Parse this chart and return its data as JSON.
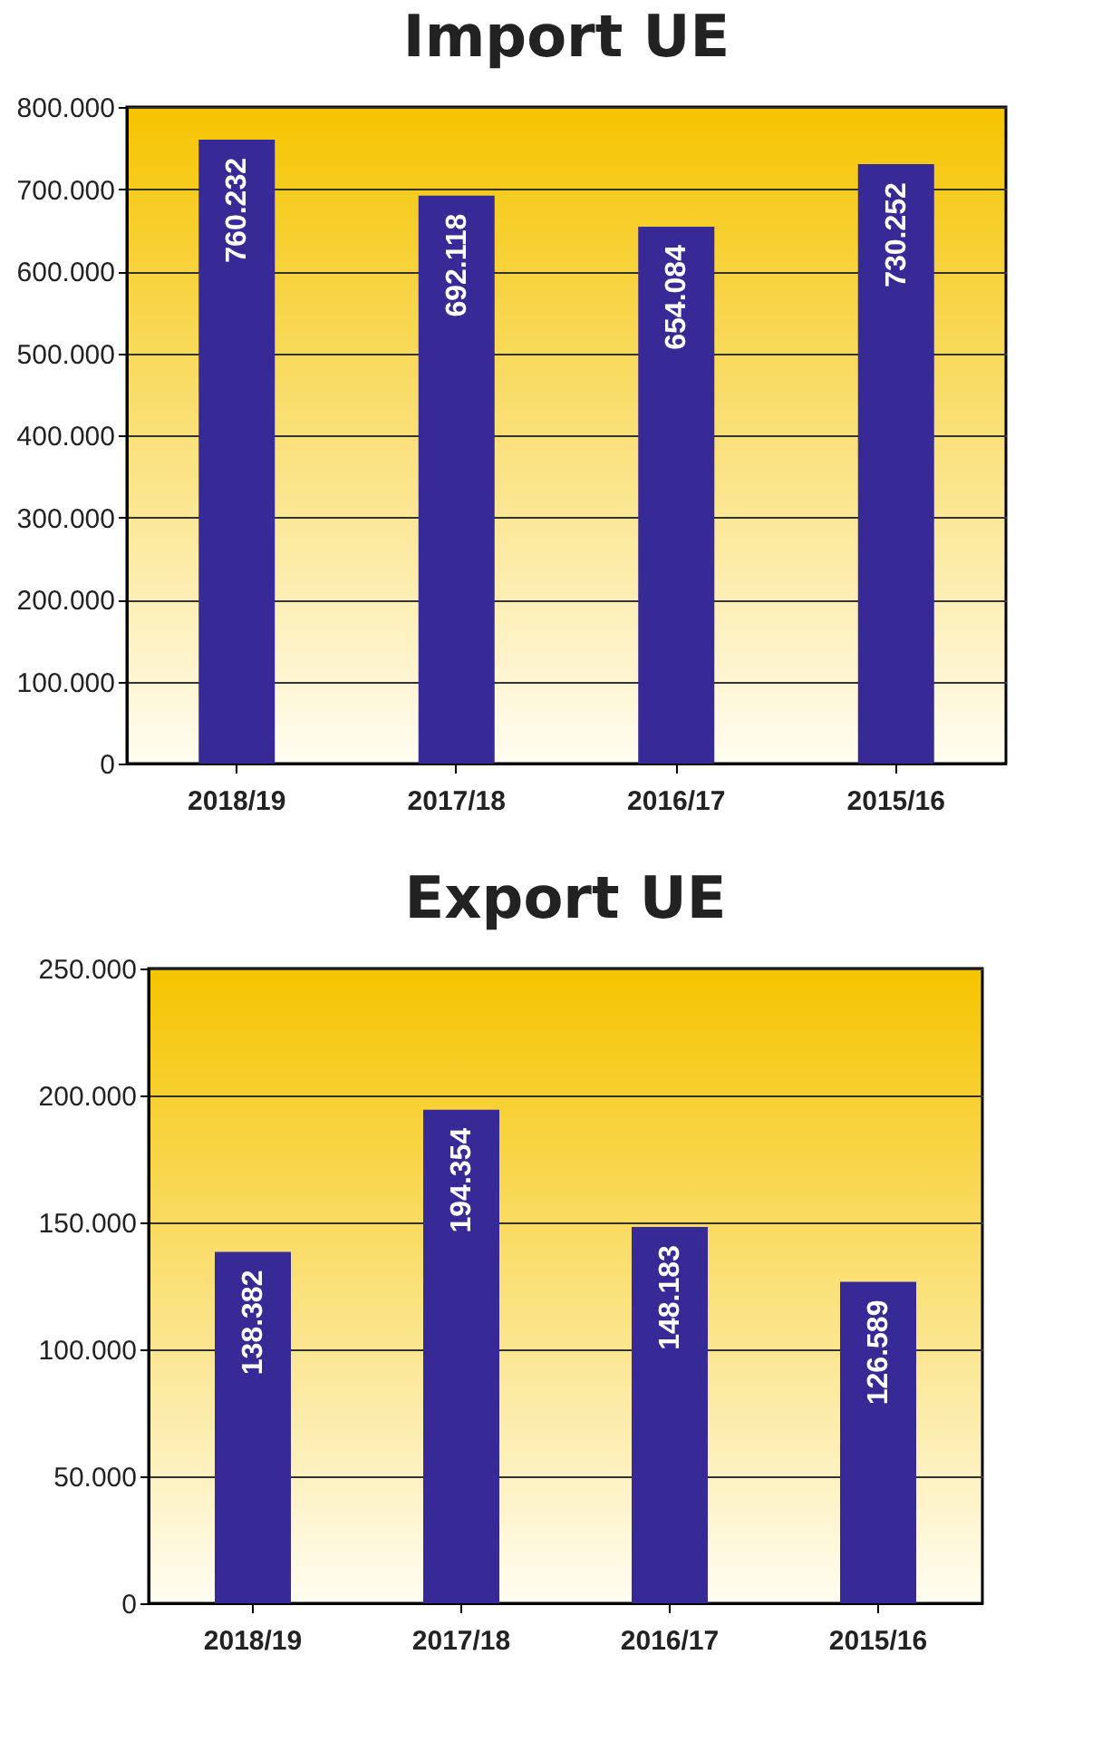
{
  "chart_data": [
    {
      "type": "bar",
      "title": "Import UE",
      "categories": [
        "2018/19",
        "2017/18",
        "2016/17",
        "2015/16"
      ],
      "values": [
        760232,
        692118,
        654084,
        730252
      ],
      "value_labels": [
        "760.232",
        "692.118",
        "654.084",
        "730.252"
      ],
      "color": "#372a96",
      "ylim": [
        0,
        800000
      ],
      "yticks": [
        {
          "value": 0,
          "label": "0"
        },
        {
          "value": 100000,
          "label": "100.000"
        },
        {
          "value": 200000,
          "label": "200.000"
        },
        {
          "value": 300000,
          "label": "300.000"
        },
        {
          "value": 400000,
          "label": "400.000"
        },
        {
          "value": 500000,
          "label": "500.000"
        },
        {
          "value": 600000,
          "label": "600.000"
        },
        {
          "value": 700000,
          "label": "700.000"
        },
        {
          "value": 800000,
          "label": "800.000"
        }
      ],
      "grid": "y"
    },
    {
      "type": "bar",
      "title": "Export UE",
      "categories": [
        "2018/19",
        "2017/18",
        "2016/17",
        "2015/16"
      ],
      "values": [
        138382,
        194354,
        148183,
        126589
      ],
      "value_labels": [
        "138.382",
        "194.354",
        "148.183",
        "126.589"
      ],
      "color": "#372a96",
      "ylim": [
        0,
        250000
      ],
      "yticks": [
        {
          "value": 0,
          "label": "0"
        },
        {
          "value": 50000,
          "label": "50.000"
        },
        {
          "value": 100000,
          "label": "100.000"
        },
        {
          "value": 150000,
          "label": "150.000"
        },
        {
          "value": 200000,
          "label": "200.000"
        },
        {
          "value": 250000,
          "label": "250.000"
        }
      ],
      "grid": "y"
    }
  ]
}
